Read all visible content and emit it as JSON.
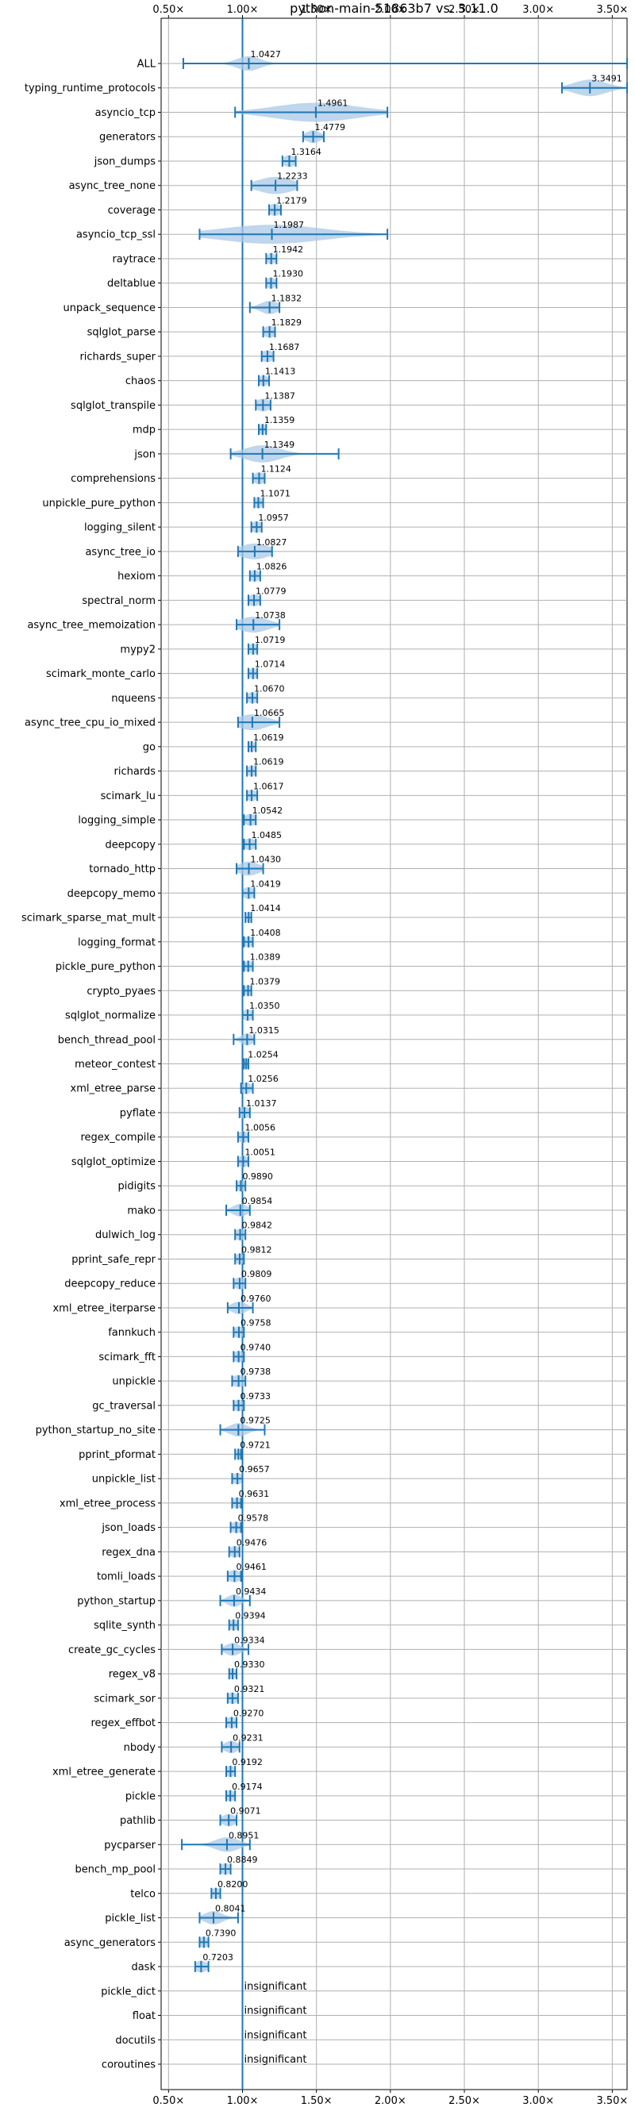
{
  "chart_data": {
    "type": "violin",
    "title": "python-main-51863b7 vs. 3.11.0",
    "xlim": [
      0.45,
      3.6
    ],
    "x_ticks": [
      0.5,
      1.0,
      1.5,
      2.0,
      2.5,
      3.0,
      3.5
    ],
    "x_tick_labels": [
      "0.50×",
      "1.00×",
      "1.50×",
      "2.00×",
      "2.50×",
      "3.00×",
      "3.50×"
    ],
    "reference_x": 1.0,
    "grid": true,
    "colors": {
      "violin": "#a9c8e6",
      "line": "#1f77b4",
      "reference": "#1f77b4",
      "grid": "#b0b0b0"
    },
    "insignificant_text": "insignificant",
    "benchmarks": [
      {
        "name": "ALL",
        "value": 1.0427,
        "label": "1.0427",
        "min": 0.6,
        "max": 3.6,
        "spread": 0.08
      },
      {
        "name": "typing_runtime_protocols",
        "value": 3.3491,
        "label": "3.3491",
        "min": 3.16,
        "max": 3.6,
        "spread": 0.11
      },
      {
        "name": "asyncio_tcp",
        "value": 1.4961,
        "label": "1.4961",
        "min": 0.95,
        "max": 1.98,
        "spread": 0.28
      },
      {
        "name": "generators",
        "value": 1.4779,
        "label": "1.4779",
        "min": 1.41,
        "max": 1.55,
        "spread": 0.05
      },
      {
        "name": "json_dumps",
        "value": 1.3164,
        "label": "1.3164",
        "min": 1.27,
        "max": 1.36,
        "spread": 0.04
      },
      {
        "name": "async_tree_none",
        "value": 1.2233,
        "label": "1.2233",
        "min": 1.06,
        "max": 1.37,
        "spread": 0.12
      },
      {
        "name": "coverage",
        "value": 1.2179,
        "label": "1.2179",
        "min": 1.18,
        "max": 1.26,
        "spread": 0.04
      },
      {
        "name": "asyncio_tcp_ssl",
        "value": 1.1987,
        "label": "1.1987",
        "min": 0.71,
        "max": 1.98,
        "spread": 0.34
      },
      {
        "name": "raytrace",
        "value": 1.1942,
        "label": "1.1942",
        "min": 1.16,
        "max": 1.23,
        "spread": 0.03
      },
      {
        "name": "deltablue",
        "value": 1.193,
        "label": "1.1930",
        "min": 1.16,
        "max": 1.23,
        "spread": 0.03
      },
      {
        "name": "unpack_sequence",
        "value": 1.1832,
        "label": "1.1832",
        "min": 1.05,
        "max": 1.25,
        "spread": 0.06
      },
      {
        "name": "sqlglot_parse",
        "value": 1.1829,
        "label": "1.1829",
        "min": 1.14,
        "max": 1.22,
        "spread": 0.04
      },
      {
        "name": "richards_super",
        "value": 1.1687,
        "label": "1.1687",
        "min": 1.13,
        "max": 1.21,
        "spread": 0.04
      },
      {
        "name": "chaos",
        "value": 1.1413,
        "label": "1.1413",
        "min": 1.11,
        "max": 1.18,
        "spread": 0.03
      },
      {
        "name": "sqlglot_transpile",
        "value": 1.1387,
        "label": "1.1387",
        "min": 1.09,
        "max": 1.19,
        "spread": 0.05
      },
      {
        "name": "mdp",
        "value": 1.1359,
        "label": "1.1359",
        "min": 1.11,
        "max": 1.16,
        "spread": 0.025
      },
      {
        "name": "json",
        "value": 1.1349,
        "label": "1.1349",
        "min": 0.92,
        "max": 1.65,
        "spread": 0.12
      },
      {
        "name": "comprehensions",
        "value": 1.1124,
        "label": "1.1124",
        "min": 1.07,
        "max": 1.15,
        "spread": 0.04
      },
      {
        "name": "unpickle_pure_python",
        "value": 1.1071,
        "label": "1.1071",
        "min": 1.08,
        "max": 1.14,
        "spread": 0.03
      },
      {
        "name": "logging_silent",
        "value": 1.0957,
        "label": "1.0957",
        "min": 1.06,
        "max": 1.13,
        "spread": 0.035
      },
      {
        "name": "async_tree_io",
        "value": 1.0827,
        "label": "1.0827",
        "min": 0.97,
        "max": 1.2,
        "spread": 0.1
      },
      {
        "name": "hexiom",
        "value": 1.0826,
        "label": "1.0826",
        "min": 1.05,
        "max": 1.12,
        "spread": 0.035
      },
      {
        "name": "spectral_norm",
        "value": 1.0779,
        "label": "1.0779",
        "min": 1.04,
        "max": 1.12,
        "spread": 0.04
      },
      {
        "name": "async_tree_memoization",
        "value": 1.0738,
        "label": "1.0738",
        "min": 0.96,
        "max": 1.25,
        "spread": 0.1
      },
      {
        "name": "mypy2",
        "value": 1.0719,
        "label": "1.0719",
        "min": 1.04,
        "max": 1.1,
        "spread": 0.03
      },
      {
        "name": "scimark_monte_carlo",
        "value": 1.0714,
        "label": "1.0714",
        "min": 1.04,
        "max": 1.1,
        "spread": 0.03
      },
      {
        "name": "nqueens",
        "value": 1.067,
        "label": "1.0670",
        "min": 1.03,
        "max": 1.1,
        "spread": 0.035
      },
      {
        "name": "async_tree_cpu_io_mixed",
        "value": 1.0665,
        "label": "1.0665",
        "min": 0.97,
        "max": 1.25,
        "spread": 0.1
      },
      {
        "name": "go",
        "value": 1.0619,
        "label": "1.0619",
        "min": 1.04,
        "max": 1.09,
        "spread": 0.025
      },
      {
        "name": "richards",
        "value": 1.0619,
        "label": "1.0619",
        "min": 1.03,
        "max": 1.09,
        "spread": 0.03
      },
      {
        "name": "scimark_lu",
        "value": 1.0617,
        "label": "1.0617",
        "min": 1.03,
        "max": 1.1,
        "spread": 0.035
      },
      {
        "name": "logging_simple",
        "value": 1.0542,
        "label": "1.0542",
        "min": 1.01,
        "max": 1.09,
        "spread": 0.04
      },
      {
        "name": "deepcopy",
        "value": 1.0485,
        "label": "1.0485",
        "min": 1.01,
        "max": 1.09,
        "spread": 0.04
      },
      {
        "name": "tornado_http",
        "value": 1.043,
        "label": "1.0430",
        "min": 0.96,
        "max": 1.14,
        "spread": 0.07
      },
      {
        "name": "deepcopy_memo",
        "value": 1.0419,
        "label": "1.0419",
        "min": 1.0,
        "max": 1.08,
        "spread": 0.04
      },
      {
        "name": "scimark_sparse_mat_mult",
        "value": 1.0414,
        "label": "1.0414",
        "min": 1.02,
        "max": 1.06,
        "spread": 0.02
      },
      {
        "name": "logging_format",
        "value": 1.0408,
        "label": "1.0408",
        "min": 1.01,
        "max": 1.07,
        "spread": 0.03
      },
      {
        "name": "pickle_pure_python",
        "value": 1.0389,
        "label": "1.0389",
        "min": 1.01,
        "max": 1.07,
        "spread": 0.03
      },
      {
        "name": "crypto_pyaes",
        "value": 1.0379,
        "label": "1.0379",
        "min": 1.01,
        "max": 1.06,
        "spread": 0.025
      },
      {
        "name": "sqlglot_normalize",
        "value": 1.035,
        "label": "1.0350",
        "min": 1.0,
        "max": 1.07,
        "spread": 0.035
      },
      {
        "name": "bench_thread_pool",
        "value": 1.0315,
        "label": "1.0315",
        "min": 0.94,
        "max": 1.08,
        "spread": 0.04
      },
      {
        "name": "meteor_contest",
        "value": 1.0254,
        "label": "1.0254",
        "min": 1.01,
        "max": 1.04,
        "spread": 0.015
      },
      {
        "name": "xml_etree_parse",
        "value": 1.0256,
        "label": "1.0256",
        "min": 0.99,
        "max": 1.07,
        "spread": 0.035
      },
      {
        "name": "pyflate",
        "value": 1.0137,
        "label": "1.0137",
        "min": 0.98,
        "max": 1.05,
        "spread": 0.035
      },
      {
        "name": "regex_compile",
        "value": 1.0056,
        "label": "1.0056",
        "min": 0.97,
        "max": 1.04,
        "spread": 0.035
      },
      {
        "name": "sqlglot_optimize",
        "value": 1.0051,
        "label": "1.0051",
        "min": 0.97,
        "max": 1.04,
        "spread": 0.035
      },
      {
        "name": "pidigits",
        "value": 0.989,
        "label": "0.9890",
        "min": 0.96,
        "max": 1.02,
        "spread": 0.03
      },
      {
        "name": "mako",
        "value": 0.9854,
        "label": "0.9854",
        "min": 0.89,
        "max": 1.05,
        "spread": 0.05
      },
      {
        "name": "dulwich_log",
        "value": 0.9842,
        "label": "0.9842",
        "min": 0.95,
        "max": 1.02,
        "spread": 0.035
      },
      {
        "name": "pprint_safe_repr",
        "value": 0.9812,
        "label": "0.9812",
        "min": 0.95,
        "max": 1.01,
        "spread": 0.03
      },
      {
        "name": "deepcopy_reduce",
        "value": 0.9809,
        "label": "0.9809",
        "min": 0.94,
        "max": 1.02,
        "spread": 0.04
      },
      {
        "name": "xml_etree_iterparse",
        "value": 0.976,
        "label": "0.9760",
        "min": 0.9,
        "max": 1.07,
        "spread": 0.05
      },
      {
        "name": "fannkuch",
        "value": 0.9758,
        "label": "0.9758",
        "min": 0.94,
        "max": 1.01,
        "spread": 0.035
      },
      {
        "name": "scimark_fft",
        "value": 0.974,
        "label": "0.9740",
        "min": 0.94,
        "max": 1.01,
        "spread": 0.035
      },
      {
        "name": "unpickle",
        "value": 0.9738,
        "label": "0.9738",
        "min": 0.93,
        "max": 1.02,
        "spread": 0.045
      },
      {
        "name": "gc_traversal",
        "value": 0.9733,
        "label": "0.9733",
        "min": 0.94,
        "max": 1.01,
        "spread": 0.035
      },
      {
        "name": "python_startup_no_site",
        "value": 0.9725,
        "label": "0.9725",
        "min": 0.85,
        "max": 1.15,
        "spread": 0.06
      },
      {
        "name": "pprint_pformat",
        "value": 0.9721,
        "label": "0.9721",
        "min": 0.95,
        "max": 0.99,
        "spread": 0.02
      },
      {
        "name": "unpickle_list",
        "value": 0.9657,
        "label": "0.9657",
        "min": 0.93,
        "max": 1.0,
        "spread": 0.035
      },
      {
        "name": "xml_etree_process",
        "value": 0.9631,
        "label": "0.9631",
        "min": 0.93,
        "max": 0.99,
        "spread": 0.03
      },
      {
        "name": "json_loads",
        "value": 0.9578,
        "label": "0.9578",
        "min": 0.92,
        "max": 0.99,
        "spread": 0.035
      },
      {
        "name": "regex_dna",
        "value": 0.9476,
        "label": "0.9476",
        "min": 0.91,
        "max": 0.98,
        "spread": 0.035
      },
      {
        "name": "tomli_loads",
        "value": 0.9461,
        "label": "0.9461",
        "min": 0.9,
        "max": 0.99,
        "spread": 0.045
      },
      {
        "name": "python_startup",
        "value": 0.9434,
        "label": "0.9434",
        "min": 0.85,
        "max": 1.05,
        "spread": 0.045
      },
      {
        "name": "sqlite_synth",
        "value": 0.9394,
        "label": "0.9394",
        "min": 0.91,
        "max": 0.97,
        "spread": 0.03
      },
      {
        "name": "create_gc_cycles",
        "value": 0.9334,
        "label": "0.9334",
        "min": 0.86,
        "max": 1.04,
        "spread": 0.05
      },
      {
        "name": "regex_v8",
        "value": 0.933,
        "label": "0.9330",
        "min": 0.91,
        "max": 0.96,
        "spread": 0.025
      },
      {
        "name": "scimark_sor",
        "value": 0.9321,
        "label": "0.9321",
        "min": 0.9,
        "max": 0.97,
        "spread": 0.035
      },
      {
        "name": "regex_effbot",
        "value": 0.927,
        "label": "0.9270",
        "min": 0.89,
        "max": 0.96,
        "spread": 0.035
      },
      {
        "name": "nbody",
        "value": 0.9231,
        "label": "0.9231",
        "min": 0.86,
        "max": 0.98,
        "spread": 0.045
      },
      {
        "name": "xml_etree_generate",
        "value": 0.9192,
        "label": "0.9192",
        "min": 0.89,
        "max": 0.95,
        "spread": 0.03
      },
      {
        "name": "pickle",
        "value": 0.9174,
        "label": "0.9174",
        "min": 0.89,
        "max": 0.95,
        "spread": 0.03
      },
      {
        "name": "pathlib",
        "value": 0.9071,
        "label": "0.9071",
        "min": 0.85,
        "max": 0.96,
        "spread": 0.045
      },
      {
        "name": "pycparser",
        "value": 0.8951,
        "label": "0.8951",
        "min": 0.59,
        "max": 1.05,
        "spread": 0.08
      },
      {
        "name": "bench_mp_pool",
        "value": 0.8849,
        "label": "0.8849",
        "min": 0.85,
        "max": 0.92,
        "spread": 0.035
      },
      {
        "name": "telco",
        "value": 0.82,
        "label": "0.8200",
        "min": 0.79,
        "max": 0.85,
        "spread": 0.03
      },
      {
        "name": "pickle_list",
        "value": 0.8041,
        "label": "0.8041",
        "min": 0.71,
        "max": 0.97,
        "spread": 0.06
      },
      {
        "name": "async_generators",
        "value": 0.739,
        "label": "0.7390",
        "min": 0.71,
        "max": 0.77,
        "spread": 0.03
      },
      {
        "name": "dask",
        "value": 0.7203,
        "label": "0.7203",
        "min": 0.68,
        "max": 0.77,
        "spread": 0.04
      },
      {
        "name": "pickle_dict",
        "insignificant": true
      },
      {
        "name": "float",
        "insignificant": true
      },
      {
        "name": "docutils",
        "insignificant": true
      },
      {
        "name": "coroutines",
        "insignificant": true
      }
    ]
  }
}
